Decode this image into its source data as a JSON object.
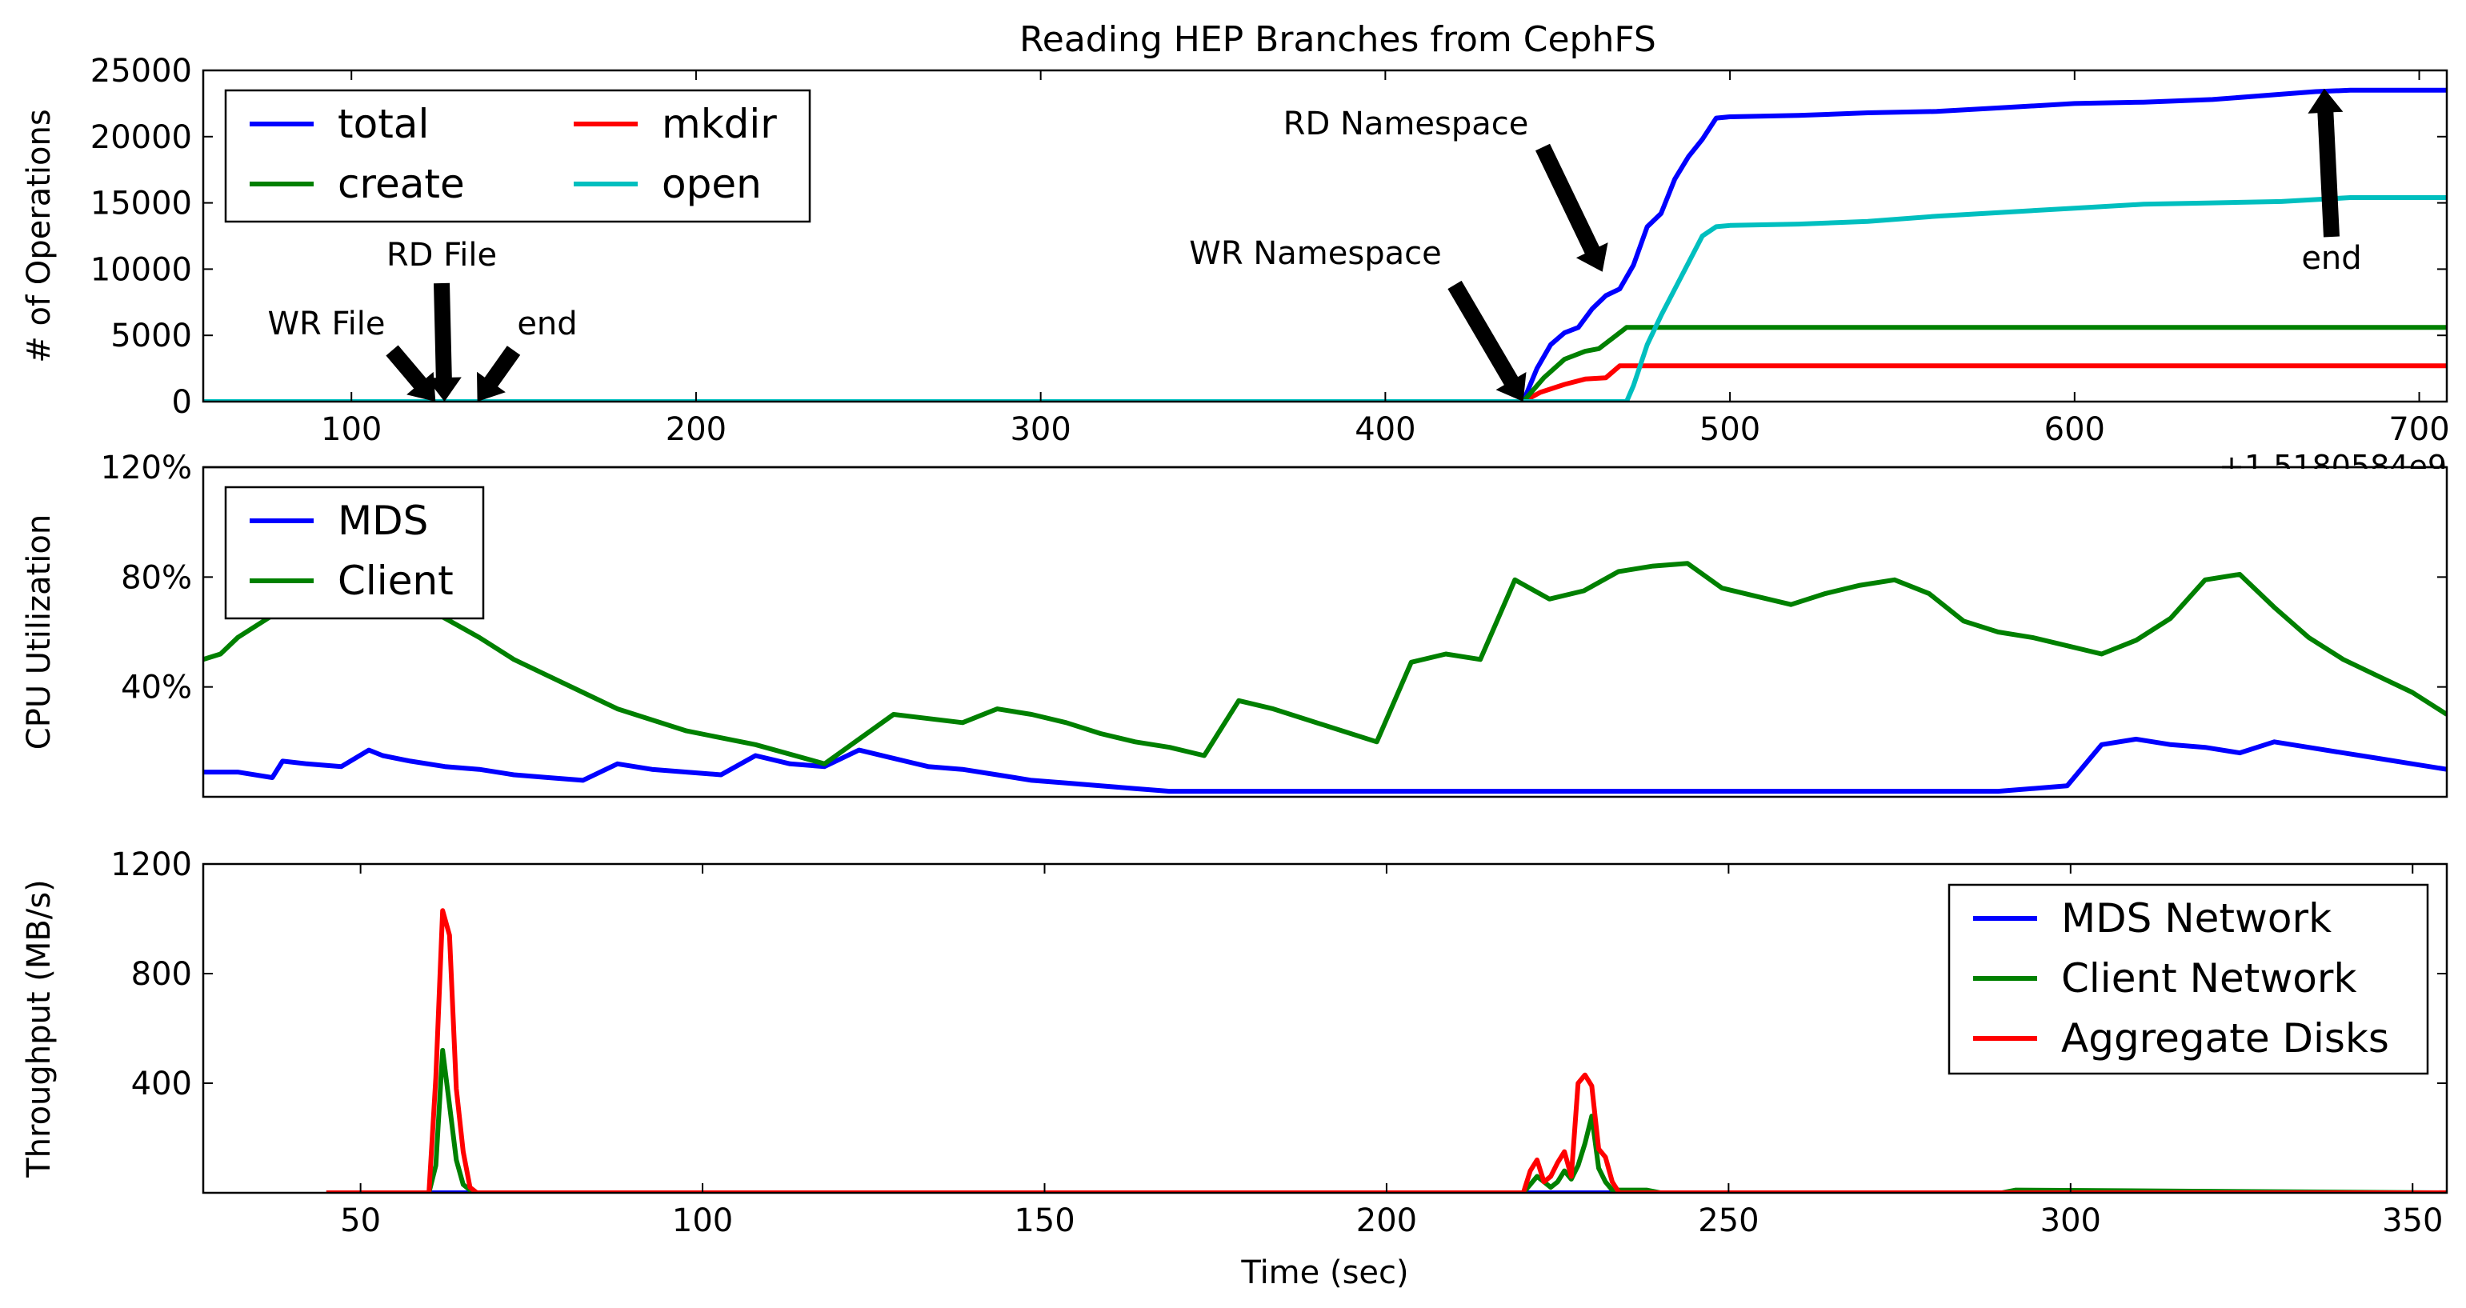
{
  "chart_data": [
    {
      "type": "line",
      "title": "Reading HEP Branches from CephFS",
      "ylabel": "# of Operations",
      "xlim": [
        57,
        708
      ],
      "ylim": [
        0,
        25000
      ],
      "xticks": [
        100,
        200,
        300,
        400,
        500,
        600,
        700
      ],
      "yticks": [
        0,
        5000,
        10000,
        15000,
        20000,
        25000
      ],
      "offset_text": "+1.5180584e9",
      "legend": {
        "placement": "top-left",
        "ncol": 2
      },
      "series": [
        {
          "name": "total",
          "color": "#0000ff",
          "x": [
            57,
            440,
            444,
            448,
            452,
            456,
            460,
            464,
            468,
            472,
            476,
            480,
            484,
            488,
            492,
            496,
            500,
            520,
            540,
            560,
            580,
            600,
            620,
            640,
            660,
            670,
            680,
            708
          ],
          "y": [
            0,
            0,
            2500,
            4300,
            5200,
            5600,
            7000,
            8000,
            8500,
            10300,
            13200,
            14200,
            16800,
            18500,
            19800,
            21400,
            21500,
            21600,
            21800,
            21900,
            22200,
            22500,
            22600,
            22800,
            23200,
            23400,
            23500,
            23500
          ]
        },
        {
          "name": "mkdir",
          "color": "#ff0000",
          "x": [
            57,
            440,
            445,
            452,
            458,
            464,
            468,
            708
          ],
          "y": [
            0,
            0,
            700,
            1300,
            1700,
            1800,
            2700,
            2700
          ]
        },
        {
          "name": "create",
          "color": "#008000",
          "x": [
            57,
            440,
            446,
            452,
            458,
            462,
            466,
            470,
            708
          ],
          "y": [
            0,
            0,
            1800,
            3200,
            3800,
            4000,
            4800,
            5600,
            5600
          ]
        },
        {
          "name": "open",
          "color": "#00bfbf",
          "x": [
            57,
            470,
            472,
            476,
            480,
            484,
            488,
            492,
            496,
            500,
            520,
            540,
            560,
            580,
            600,
            620,
            640,
            660,
            680,
            708
          ],
          "y": [
            0,
            0,
            1200,
            4300,
            6500,
            8500,
            10500,
            12500,
            13200,
            13300,
            13400,
            13600,
            14000,
            14300,
            14600,
            14900,
            15000,
            15100,
            15400,
            15400
          ]
        }
      ],
      "annotations": [
        {
          "text": "WR File",
          "x": 123,
          "y": 0
        },
        {
          "text": "RD File",
          "x": 127,
          "y": 0
        },
        {
          "text": "end",
          "x": 137,
          "y": 0
        },
        {
          "text": "WR Namespace",
          "x": 440,
          "y": 0
        },
        {
          "text": "RD Namespace",
          "x": 463,
          "y": 9800
        },
        {
          "text": "end",
          "x": 672,
          "y": 23500
        }
      ]
    },
    {
      "type": "line",
      "ylabel": "CPU Utilization",
      "xlim": [
        0,
        650
      ],
      "ylim": [
        0,
        120
      ],
      "yticks": [
        40,
        80,
        120
      ],
      "yticklabels": [
        "40%",
        "80%",
        "120%"
      ],
      "legend": {
        "placement": "top-left"
      },
      "series": [
        {
          "name": "MDS",
          "color": "#0000ff",
          "x": [
            0,
            10,
            20,
            23,
            30,
            40,
            48,
            52,
            60,
            70,
            80,
            90,
            100,
            110,
            120,
            130,
            140,
            150,
            160,
            170,
            180,
            190,
            200,
            210,
            220,
            230,
            240,
            250,
            260,
            270,
            280,
            300,
            320,
            340,
            360,
            370,
            380,
            400,
            420,
            440,
            460,
            480,
            500,
            520,
            540,
            550,
            560,
            570,
            580,
            590,
            600,
            610,
            620,
            630,
            640,
            650
          ],
          "y": [
            9,
            9,
            7,
            13,
            12,
            11,
            17,
            15,
            13,
            11,
            10,
            8,
            7,
            6,
            12,
            10,
            9,
            8,
            15,
            12,
            11,
            17,
            14,
            11,
            10,
            8,
            6,
            5,
            4,
            3,
            2,
            2,
            2,
            2,
            2,
            2,
            2,
            2,
            2,
            2,
            2,
            2,
            2,
            2,
            4,
            19,
            21,
            19,
            18,
            16,
            20,
            18,
            16,
            14,
            12,
            10
          ]
        },
        {
          "name": "Client",
          "color": "#008000",
          "x": [
            0,
            5,
            10,
            15,
            20,
            22,
            25,
            30,
            35,
            40,
            50,
            60,
            70,
            80,
            90,
            100,
            110,
            120,
            140,
            160,
            180,
            200,
            220,
            230,
            240,
            250,
            260,
            270,
            280,
            290,
            300,
            310,
            320,
            330,
            340,
            350,
            360,
            370,
            380,
            390,
            400,
            410,
            420,
            430,
            440,
            450,
            460,
            470,
            480,
            490,
            500,
            510,
            520,
            530,
            540,
            550,
            560,
            570,
            580,
            590,
            600,
            610,
            620,
            630,
            640,
            650
          ],
          "y": [
            50,
            52,
            58,
            62,
            66,
            82,
            86,
            90,
            88,
            85,
            80,
            73,
            65,
            58,
            50,
            44,
            38,
            32,
            24,
            19,
            12,
            30,
            27,
            32,
            30,
            27,
            23,
            20,
            18,
            15,
            35,
            32,
            28,
            24,
            20,
            49,
            52,
            50,
            79,
            72,
            75,
            82,
            84,
            85,
            76,
            73,
            70,
            74,
            77,
            79,
            74,
            64,
            60,
            58,
            55,
            52,
            57,
            65,
            79,
            81,
            69,
            58,
            50,
            44,
            38,
            30
          ]
        }
      ]
    },
    {
      "type": "line",
      "xlabel": "Time (sec)",
      "ylabel": "Throughput (MB/s)",
      "xlim": [
        27,
        355
      ],
      "ylim": [
        0,
        1200
      ],
      "xticks": [
        50,
        100,
        150,
        200,
        250,
        300,
        350
      ],
      "yticks": [
        400,
        800,
        1200
      ],
      "legend": {
        "placement": "top-right"
      },
      "series": [
        {
          "name": "MDS Network",
          "color": "#0000ff",
          "x": [
            45,
            355
          ],
          "y": [
            0,
            0
          ]
        },
        {
          "name": "Client Network",
          "color": "#008000",
          "x": [
            45,
            60,
            61,
            62,
            63,
            64,
            65,
            66,
            67,
            220,
            221,
            222,
            223,
            224,
            225,
            226,
            227,
            228,
            229,
            230,
            231,
            232,
            233,
            234,
            236,
            238,
            240,
            290,
            292,
            355
          ],
          "y": [
            0,
            0,
            100,
            520,
            320,
            120,
            30,
            10,
            0,
            0,
            30,
            60,
            40,
            20,
            40,
            80,
            50,
            100,
            180,
            280,
            90,
            40,
            10,
            10,
            10,
            10,
            0,
            0,
            10,
            0
          ]
        },
        {
          "name": "Aggregate Disks",
          "color": "#ff0000",
          "x": [
            45,
            60,
            61,
            62,
            63,
            64,
            65,
            66,
            67,
            220,
            221,
            222,
            223,
            224,
            225,
            226,
            227,
            228,
            229,
            230,
            231,
            232,
            233,
            234,
            355
          ],
          "y": [
            0,
            0,
            420,
            1030,
            940,
            380,
            150,
            20,
            0,
            0,
            80,
            120,
            40,
            60,
            110,
            150,
            60,
            400,
            430,
            390,
            160,
            130,
            40,
            0,
            0
          ]
        }
      ]
    }
  ]
}
